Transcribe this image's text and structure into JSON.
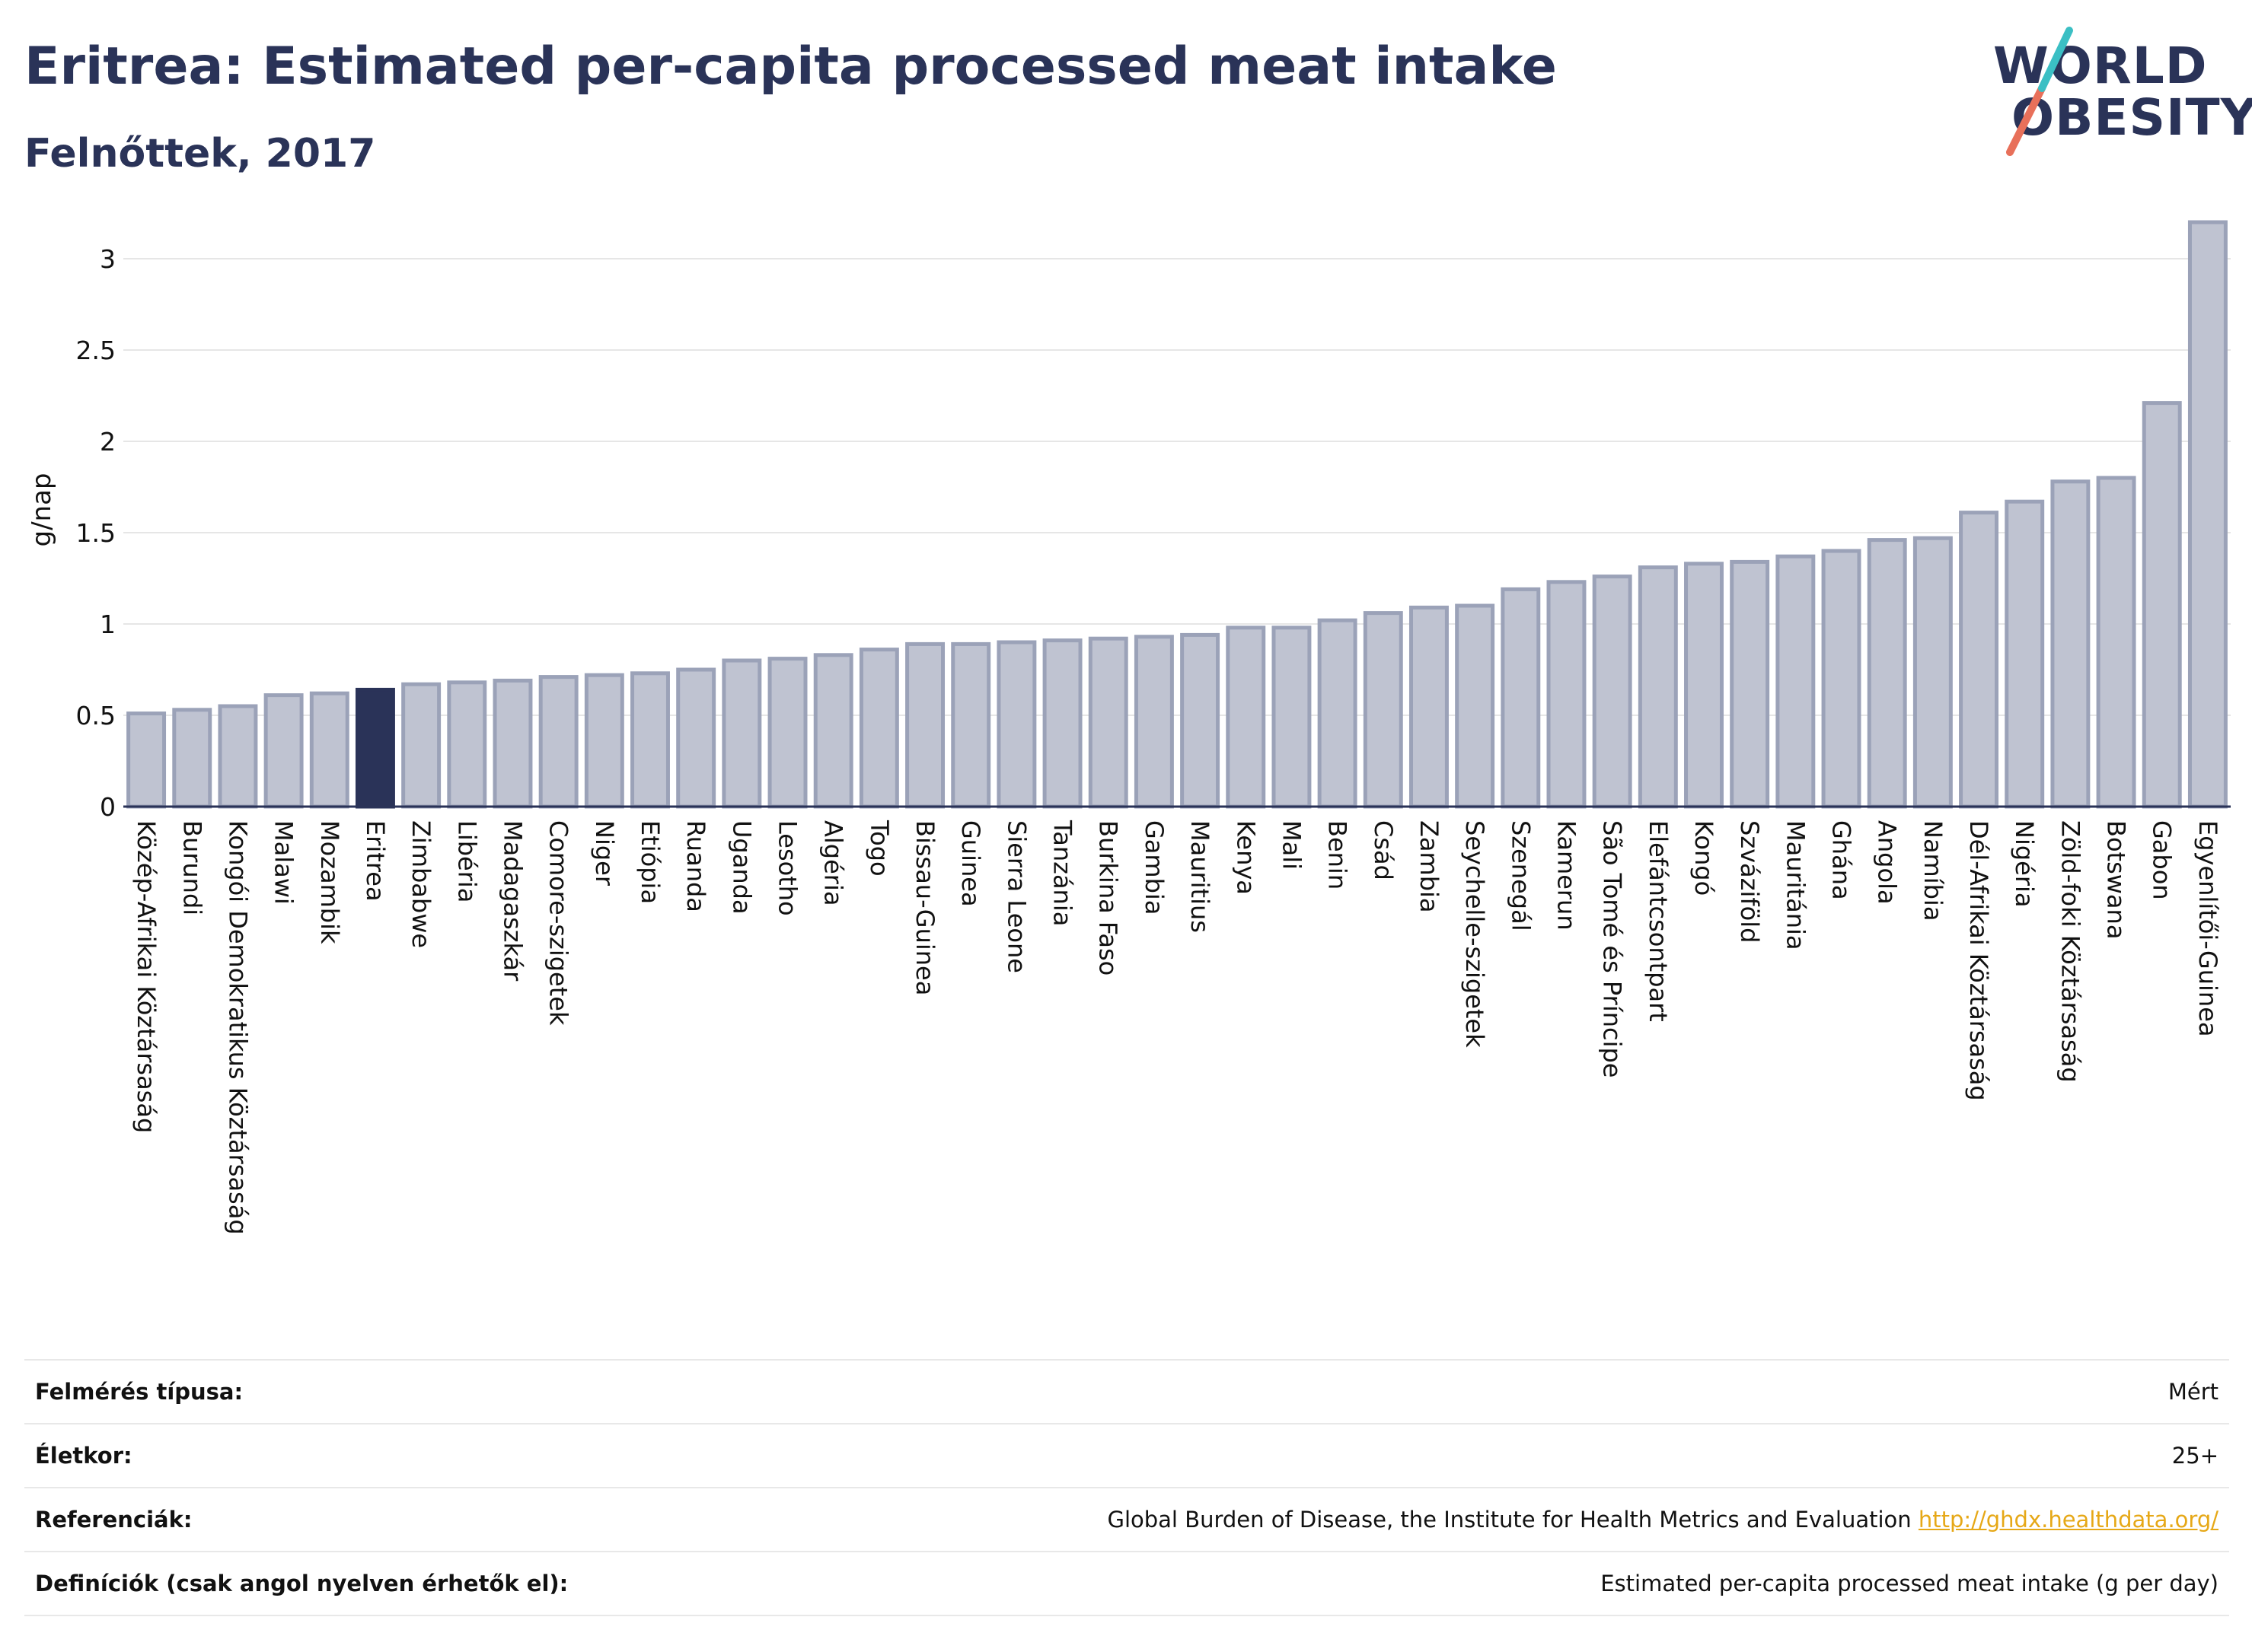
{
  "header": {
    "title": "Eritrea: Estimated per-capita processed meat intake",
    "subtitle": "Felnőttek, 2017"
  },
  "logo": {
    "line1": "WORLD",
    "line2": "OBESITY",
    "text_color": "#2a3358",
    "slash_colors": [
      "#e8705a",
      "#3bbfc4"
    ]
  },
  "colors": {
    "bar_default": "#bfc3d1",
    "bar_stroke": "#9ba2b8",
    "bar_highlight": "#2a3358",
    "grid": "#e6e6e6",
    "axis": "#2a3358"
  },
  "chart_data": {
    "type": "bar",
    "ylabel": "g/nap",
    "ylim": [
      0,
      3.25
    ],
    "yticks": [
      0,
      0.5,
      1,
      1.5,
      2,
      2.5,
      3
    ],
    "ytick_labels": [
      "0",
      "0.5",
      "1",
      "1.5",
      "2",
      "2.5",
      "3"
    ],
    "grid": true,
    "highlight": "Eritrea",
    "categories": [
      "Közép-Afrikai Köztársaság",
      "Burundi",
      "Kongói Demokratikus Köztársaság",
      "Malawi",
      "Mozambik",
      "Eritrea",
      "Zimbabwe",
      "Libéria",
      "Madagaszkár",
      "Comore-szigetek",
      "Niger",
      "Etiópia",
      "Ruanda",
      "Uganda",
      "Lesotho",
      "Algéria",
      "Togo",
      "Bissau-Guinea",
      "Guinea",
      "Sierra Leone",
      "Tanzánia",
      "Burkina Faso",
      "Gambia",
      "Mauritius",
      "Kenya",
      "Mali",
      "Benin",
      "Csád",
      "Zambia",
      "Seychelle-szigetek",
      "Szenegál",
      "Kamerun",
      "São Tomé és Príncipe",
      "Elefántcsontpart",
      "Kongó",
      "Szváziföld",
      "Mauritánia",
      "Ghána",
      "Angola",
      "Namíbia",
      "Dél-Afrikai Köztársaság",
      "Nigéria",
      "Zöld-foki Köztársaság",
      "Botswana",
      "Gabon",
      "Egyenlítői-Guinea"
    ],
    "values": [
      0.51,
      0.53,
      0.55,
      0.61,
      0.62,
      0.64,
      0.67,
      0.68,
      0.69,
      0.71,
      0.72,
      0.73,
      0.75,
      0.8,
      0.81,
      0.83,
      0.86,
      0.89,
      0.89,
      0.9,
      0.91,
      0.92,
      0.93,
      0.94,
      0.98,
      0.98,
      1.02,
      1.06,
      1.09,
      1.1,
      1.19,
      1.23,
      1.26,
      1.31,
      1.33,
      1.34,
      1.37,
      1.4,
      1.46,
      1.47,
      1.61,
      1.67,
      1.78,
      1.8,
      2.21,
      3.2
    ]
  },
  "info": {
    "rows": [
      {
        "label": "Felmérés típusa:",
        "value": "Mért"
      },
      {
        "label": "Életkor:",
        "value": "25+"
      },
      {
        "label": "Referenciák:",
        "value": "Global Burden of Disease, the Institute for Health Metrics and Evaluation",
        "link": "http://ghdx.healthdata.org/"
      },
      {
        "label": "Definíciók (csak angol nyelven érhetők el):",
        "value": "Estimated per-capita processed meat intake (g per day)"
      }
    ]
  }
}
